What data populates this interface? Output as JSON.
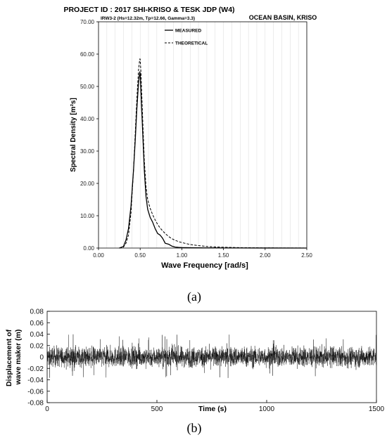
{
  "colors": {
    "axis": "#000000",
    "grid": "#d9d9d9",
    "measured": "#000000",
    "theoretical": "#000000",
    "signal": "#000000"
  },
  "panel_a": {
    "caption": "(a)",
    "title": "PROJECT ID : 2017 SHI-KRISO & TESK JDP (W4)",
    "subtitle": "IRW3-2 (Hs=12.32m, Tp=12.66, Gamma=3.3)",
    "corner_label": "OCEAN BASIN, KRISO"
  },
  "panel_b": {
    "caption": "(b)"
  },
  "chart_data": [
    {
      "type": "line",
      "title": "PROJECT ID : 2017 SHI-KRISO & TESK JDP (W4)",
      "subtitle": "IRW3-2 (Hs=12.32m, Tp=12.66, Gamma=3.3)",
      "xlabel": "Wave Frequency [rad/s]",
      "ylabel": "Spectral Density [m²s]",
      "xlim": [
        0,
        2.5
      ],
      "ylim": [
        0,
        70
      ],
      "x_ticks": [
        "0.00",
        "0.50",
        "1.00",
        "1.50",
        "2.00",
        "2.50"
      ],
      "y_ticks": [
        "0.00",
        "10.00",
        "20.00",
        "30.00",
        "40.00",
        "50.00",
        "60.00",
        "70.00"
      ],
      "grid": true,
      "legend_position": "top-center",
      "series": [
        {
          "name": "MEASURED",
          "style": "solid",
          "x": [
            0.25,
            0.3,
            0.33,
            0.36,
            0.39,
            0.42,
            0.44,
            0.46,
            0.48,
            0.495,
            0.5,
            0.51,
            0.53,
            0.55,
            0.57,
            0.59,
            0.62,
            0.65,
            0.68,
            0.71,
            0.74,
            0.77,
            0.8,
            0.84,
            0.88,
            0.92,
            0.96,
            1.0,
            1.1,
            1.2,
            1.3,
            1.4,
            1.5,
            1.7,
            2.0,
            2.5
          ],
          "y": [
            0,
            0.5,
            2.5,
            6,
            13,
            24,
            33,
            43,
            51,
            54.5,
            54,
            48,
            36,
            24,
            16,
            12,
            9.5,
            8,
            6,
            4.5,
            4,
            3,
            1.5,
            1.2,
            0.6,
            0.3,
            0.2,
            0.15,
            0.1,
            0.08,
            0.05,
            0.05,
            0.03,
            0.02,
            0.01,
            0
          ]
        },
        {
          "name": "THEORETICAL",
          "style": "dashed",
          "x": [
            0.25,
            0.3,
            0.33,
            0.36,
            0.39,
            0.42,
            0.44,
            0.46,
            0.48,
            0.495,
            0.5,
            0.51,
            0.53,
            0.55,
            0.57,
            0.59,
            0.62,
            0.65,
            0.68,
            0.71,
            0.74,
            0.77,
            0.8,
            0.84,
            0.88,
            0.92,
            0.96,
            1.0,
            1.1,
            1.2,
            1.3,
            1.4,
            1.5,
            1.7,
            2.0,
            2.5
          ],
          "y": [
            0,
            0.3,
            1.5,
            4,
            11,
            24,
            35,
            46,
            55,
            58.5,
            58.5,
            54,
            40,
            27,
            19,
            15,
            12.3,
            10.3,
            8.7,
            7.3,
            6.2,
            5.3,
            4.5,
            3.6,
            2.9,
            2.4,
            2.0,
            1.7,
            1.1,
            0.75,
            0.5,
            0.35,
            0.25,
            0.13,
            0.05,
            0.01
          ]
        }
      ]
    },
    {
      "type": "line",
      "xlabel": "Time (s)",
      "ylabel": "Displacement of wave maker (m)",
      "xlim": [
        0,
        1500
      ],
      "ylim": [
        -0.08,
        0.08
      ],
      "x_ticks": [
        "0",
        "500",
        "1000",
        "1500"
      ],
      "y_ticks": [
        "0.08",
        "0.06",
        "0.04",
        "0.02",
        "0",
        "-0.02",
        "-0.04",
        "-0.06",
        "-0.08"
      ],
      "grid": false,
      "series": [
        {
          "style": "solid",
          "x_range": [
            0,
            1500
          ],
          "typical_amplitude": 0.012,
          "peak_amplitude": 0.04,
          "description_of_values": "dense irregular oscillation about zero"
        }
      ]
    }
  ]
}
